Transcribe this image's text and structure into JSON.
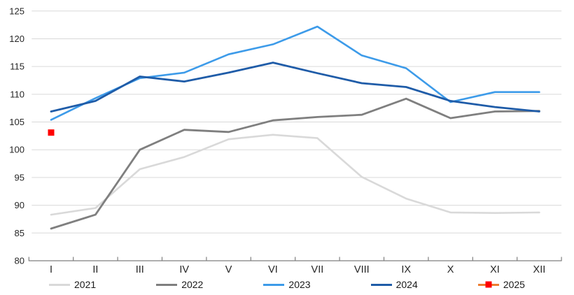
{
  "chart_data": {
    "type": "line",
    "title": "",
    "xlabel": "",
    "ylabel": "",
    "x_categories": [
      "I",
      "II",
      "III",
      "IV",
      "V",
      "VI",
      "VII",
      "VIII",
      "IX",
      "X",
      "XI",
      "XII"
    ],
    "ylim": [
      80,
      125
    ],
    "y_tick_step": 5,
    "y_tick_labels": [
      "80",
      "85",
      "90",
      "95",
      "100",
      "105",
      "110",
      "115",
      "120",
      "125"
    ],
    "grid": "horizontal",
    "legend_position": "bottom",
    "colors": {
      "gridline": "#d9d9d9",
      "axis_line": "#7f7f7f",
      "tick_text": "#262626"
    },
    "series": [
      {
        "name": "2021",
        "color": "#d9d9d9",
        "line_width": 2.6,
        "values": [
          88.3,
          89.5,
          96.5,
          98.7,
          101.9,
          102.7,
          102.1,
          95.1,
          91.2,
          88.7,
          88.6,
          88.7
        ]
      },
      {
        "name": "2022",
        "color": "#7f7f7f",
        "line_width": 2.8,
        "values": [
          85.8,
          88.3,
          100.0,
          103.6,
          103.2,
          105.3,
          105.9,
          106.3,
          109.2,
          105.7,
          106.9,
          107.0
        ]
      },
      {
        "name": "2023",
        "color": "#3d9be9",
        "line_width": 2.6,
        "values": [
          105.4,
          109.3,
          112.9,
          113.9,
          117.2,
          119.0,
          122.2,
          117.0,
          114.7,
          108.6,
          110.4,
          110.4
        ]
      },
      {
        "name": "2024",
        "color": "#1f5ca8",
        "line_width": 2.8,
        "values": [
          106.9,
          108.8,
          113.2,
          112.3,
          113.9,
          115.7,
          113.8,
          112.0,
          111.3,
          108.8,
          107.7,
          106.9
        ]
      },
      {
        "name": "2025",
        "color": "#ed7d31",
        "line_width": 2.6,
        "marker": "square",
        "marker_color": "#ff0000",
        "values": [
          103.1,
          null,
          null,
          null,
          null,
          null,
          null,
          null,
          null,
          null,
          null,
          null
        ]
      }
    ]
  }
}
